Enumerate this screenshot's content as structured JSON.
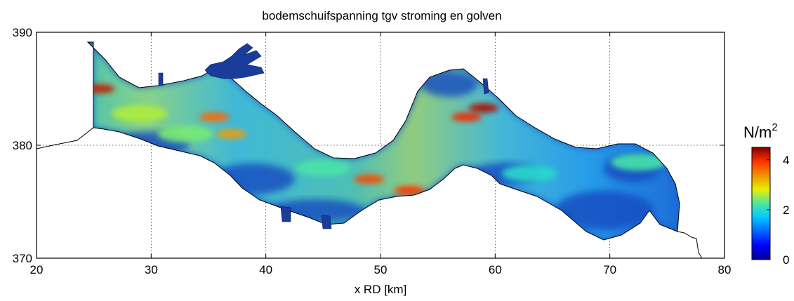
{
  "chart_data": {
    "type": "heatmap",
    "title": "bodemschuifspanning tgv stroming en golven",
    "xlabel": "x RD [km]",
    "ylabel": "",
    "x_ticks": [
      "20",
      "30",
      "40",
      "50",
      "60",
      "70",
      "80"
    ],
    "y_ticks": [
      "370",
      "380",
      "390"
    ],
    "xlim": [
      20,
      80
    ],
    "ylim": [
      370,
      390
    ],
    "grid": true,
    "grid_style": "dotted",
    "colorbar": {
      "unit": "N/m",
      "unit_superscript": "2",
      "ticks": [
        "0",
        "2",
        "4"
      ],
      "range": [
        0,
        4.5
      ],
      "colormap": "jet"
    },
    "colors": {
      "low": "#00008f",
      "mid_low": "#1e78ff",
      "mid": "#32d2a0",
      "mid_high": "#f0e614",
      "high": "#e61e1e",
      "outline": "#000000"
    },
    "annotations": [
      {
        "x": 25.5,
        "y": 385.0,
        "value": 4.2
      },
      {
        "x": 35.5,
        "y": 382.5,
        "value": 3.6
      },
      {
        "x": 37.0,
        "y": 381.0,
        "value": 3.3
      },
      {
        "x": 49.0,
        "y": 377.0,
        "value": 3.8
      },
      {
        "x": 52.5,
        "y": 376.0,
        "value": 3.9
      },
      {
        "x": 57.5,
        "y": 382.5,
        "value": 4.0
      },
      {
        "x": 59.0,
        "y": 383.3,
        "value": 4.3
      },
      {
        "x": 29.0,
        "y": 382.8,
        "value": 2.6
      },
      {
        "x": 33.0,
        "y": 381.0,
        "value": 2.4
      },
      {
        "x": 45.0,
        "y": 378.0,
        "value": 2.2
      },
      {
        "x": 63.0,
        "y": 377.5,
        "value": 2.0
      },
      {
        "x": 72.5,
        "y": 378.5,
        "value": 2.2
      }
    ]
  }
}
